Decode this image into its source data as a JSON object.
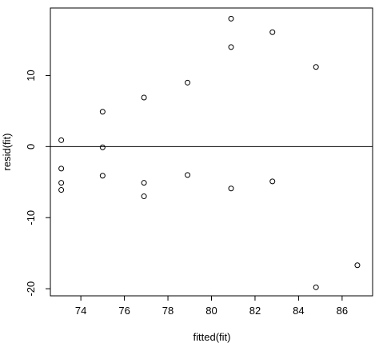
{
  "chart_data": {
    "type": "scatter",
    "title": "",
    "xlabel": "fitted(fit)",
    "ylabel": "resid(fit)",
    "xlim": [
      72.6,
      87.4
    ],
    "ylim": [
      -21,
      19.5
    ],
    "xticks": [
      74,
      76,
      78,
      80,
      82,
      84,
      86
    ],
    "yticks": [
      -20,
      -10,
      0,
      10
    ],
    "hline": 0,
    "grid": false,
    "legend": "none",
    "series": [
      {
        "marker": "open-circle",
        "points": [
          {
            "x": 73.1,
            "y": 0.9
          },
          {
            "x": 73.1,
            "y": -3.1
          },
          {
            "x": 73.1,
            "y": -5.1
          },
          {
            "x": 73.1,
            "y": -6.1
          },
          {
            "x": 75.0,
            "y": 4.9
          },
          {
            "x": 75.0,
            "y": -0.1
          },
          {
            "x": 75.0,
            "y": -4.1
          },
          {
            "x": 76.9,
            "y": 6.9
          },
          {
            "x": 76.9,
            "y": -5.1
          },
          {
            "x": 76.9,
            "y": -7.0
          },
          {
            "x": 78.9,
            "y": 9.0
          },
          {
            "x": 78.9,
            "y": -4.0
          },
          {
            "x": 80.9,
            "y": 18.0
          },
          {
            "x": 80.9,
            "y": 14.0
          },
          {
            "x": 80.9,
            "y": -5.9
          },
          {
            "x": 82.8,
            "y": 16.1
          },
          {
            "x": 82.8,
            "y": -4.9
          },
          {
            "x": 84.8,
            "y": 11.2
          },
          {
            "x": 84.8,
            "y": -19.8
          },
          {
            "x": 86.7,
            "y": -16.7
          }
        ]
      }
    ]
  }
}
